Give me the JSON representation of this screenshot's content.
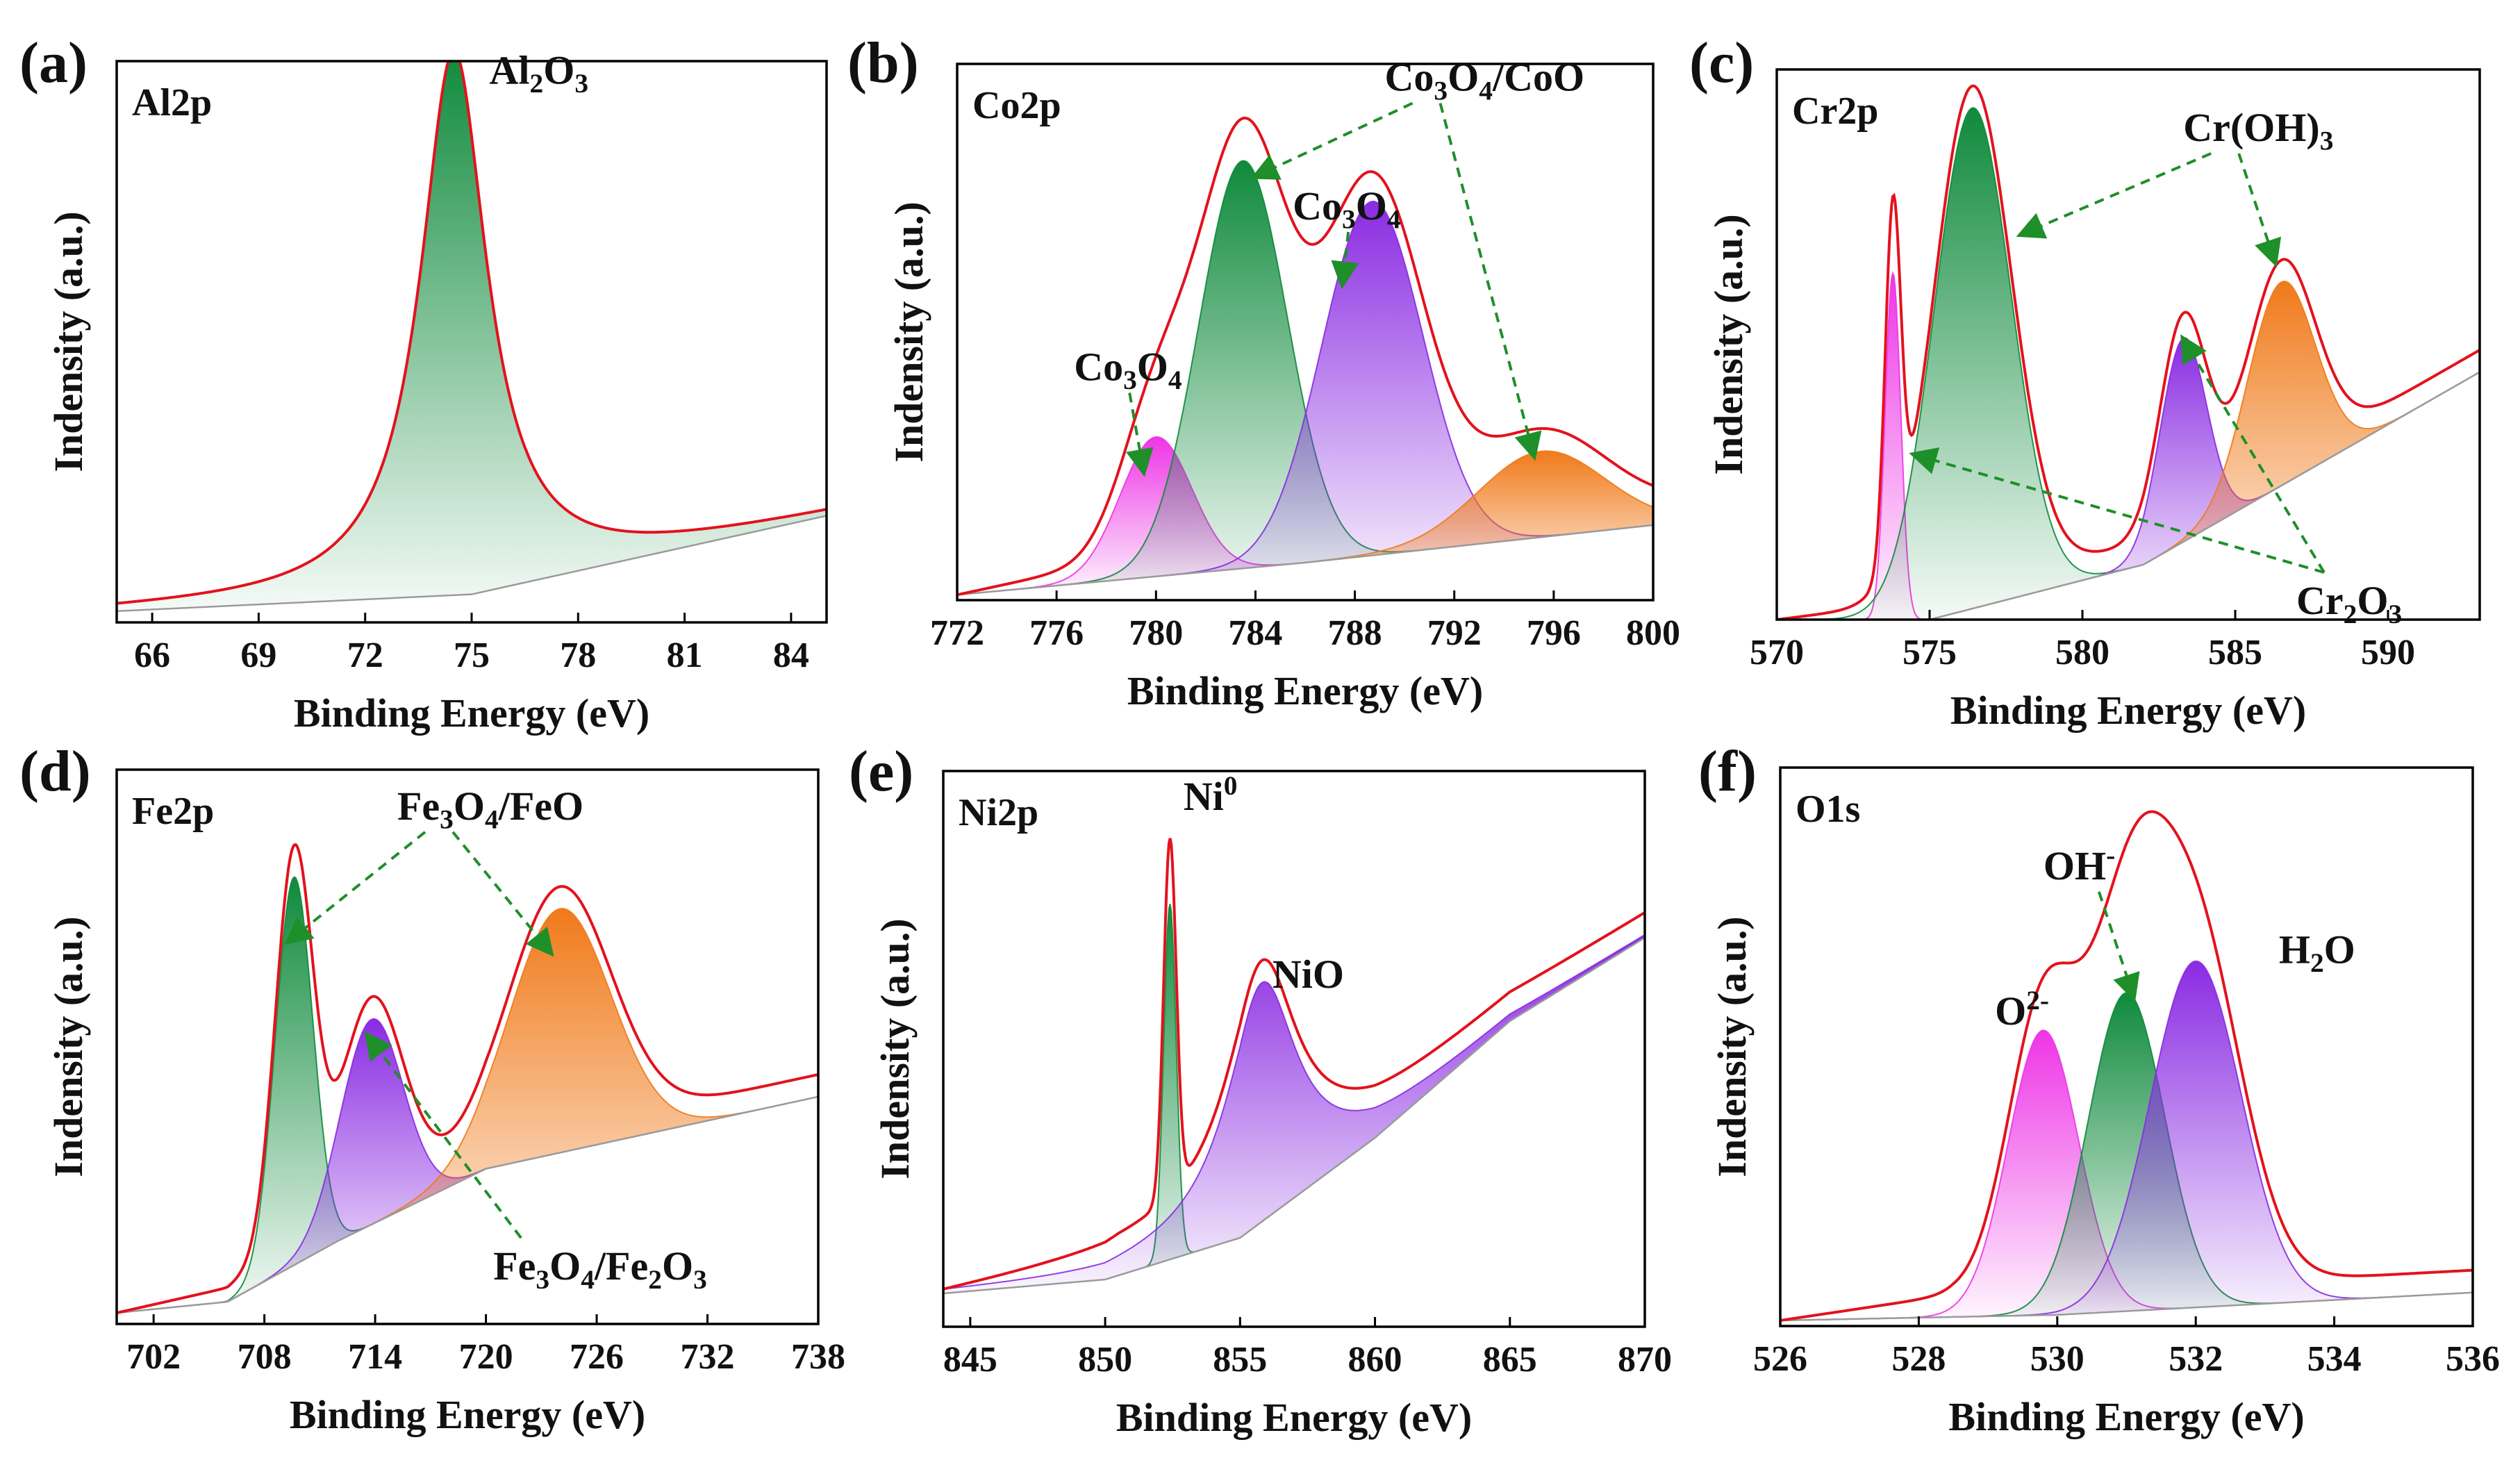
{
  "figure": {
    "x_axis_label": "Binding Energy (eV)",
    "y_axis_label": "Indensity (a.u.)"
  },
  "colors": {
    "envelope": "#e3121d",
    "green": "#0f8a3c",
    "purple": "#8a2be2",
    "orange": "#f07a1a",
    "magenta": "#ee35e6",
    "arrow": "#1f8f2a",
    "baseline": "#9b9b9b"
  },
  "chart_data": [
    {
      "id": "a",
      "panel_label": "(a)",
      "element_label": "Al2p",
      "type": "line",
      "title": "",
      "xlabel": "Binding Energy (eV)",
      "ylabel": "Indensity (a.u.)",
      "xlim": [
        65,
        85
      ],
      "ylim": [
        0,
        1
      ],
      "xticks": [
        66,
        69,
        72,
        75,
        78,
        81,
        84
      ],
      "baseline": [
        [
          65,
          0.02
        ],
        [
          75,
          0.05
        ],
        [
          85,
          0.19
        ]
      ],
      "series": [
        {
          "name": "Al2O3",
          "shape": "lorentz",
          "center": 74.5,
          "fwhm": 2.3,
          "height": 0.97,
          "color": "green"
        }
      ],
      "annotations": [
        {
          "base": "Al",
          "sub1": "2",
          "mid": "O",
          "sub2": "3",
          "tail": "",
          "pos": [
            75.5,
            0.96
          ],
          "arrows": []
        }
      ]
    },
    {
      "id": "b",
      "panel_label": "(b)",
      "element_label": "Co2p",
      "type": "line",
      "title": "",
      "xlabel": "Binding Energy (eV)",
      "ylabel": "Indensity (a.u.)",
      "xlim": [
        772,
        800
      ],
      "ylim": [
        0,
        1
      ],
      "xticks": [
        772,
        776,
        780,
        784,
        788,
        792,
        796,
        800
      ],
      "baseline": [
        [
          772,
          0.01
        ],
        [
          786,
          0.07
        ],
        [
          800,
          0.14
        ]
      ],
      "series": [
        {
          "name": "Co3O4 (780.0 eV)",
          "shape": "gauss",
          "center": 780.0,
          "fwhm": 3.4,
          "height": 0.26,
          "color": "magenta"
        },
        {
          "name": "Co3O4/CoO (783.5 eV)",
          "shape": "gauss",
          "center": 783.5,
          "fwhm": 4.2,
          "height": 0.76,
          "color": "green"
        },
        {
          "name": "Co3O4 (788.7 eV)",
          "shape": "gauss",
          "center": 788.7,
          "fwhm": 4.8,
          "height": 0.66,
          "color": "purple"
        },
        {
          "name": "Co3O4/CoO (795.5 eV)",
          "shape": "gauss",
          "center": 795.5,
          "fwhm": 6.0,
          "height": 0.16,
          "color": "orange"
        }
      ],
      "annotations": [
        {
          "base": "Co",
          "sub1": "3",
          "mid": "O",
          "sub2": "4",
          "tail": "/CoO",
          "pos": [
            789.2,
            0.95
          ],
          "arrows": [
            [
              784.0,
              0.79
            ],
            [
              795.2,
              0.27
            ]
          ]
        },
        {
          "base": "Co",
          "sub1": "3",
          "mid": "O",
          "sub2": "4",
          "tail": "",
          "pos": [
            785.5,
            0.71
          ],
          "arrows": [
            [
              787.5,
              0.59
            ]
          ]
        },
        {
          "base": "Co",
          "sub1": "3",
          "mid": "O",
          "sub2": "4",
          "tail": "",
          "pos": [
            776.7,
            0.41
          ],
          "arrows": [
            [
              779.5,
              0.24
            ]
          ]
        }
      ]
    },
    {
      "id": "c",
      "panel_label": "(c)",
      "element_label": "Cr2p",
      "type": "line",
      "title": "",
      "xlabel": "Binding Energy (eV)",
      "ylabel": "Indensity (a.u.)",
      "xlim": [
        570,
        593
      ],
      "ylim": [
        0,
        1
      ],
      "xticks": [
        570,
        575,
        580,
        585,
        590
      ],
      "baseline": [
        [
          570,
          0.0
        ],
        [
          575,
          0.0
        ],
        [
          582,
          0.1
        ],
        [
          593,
          0.45
        ]
      ],
      "series": [
        {
          "name": "Cr2O3 (573.8 eV)",
          "shape": "gauss",
          "center": 573.8,
          "fwhm": 0.6,
          "height": 0.63,
          "color": "magenta"
        },
        {
          "name": "Cr(OH)3 (576.4 eV)",
          "shape": "gauss",
          "center": 576.4,
          "fwhm": 3.0,
          "height": 0.91,
          "color": "green"
        },
        {
          "name": "Cr2O3 (583.3 eV)",
          "shape": "gauss",
          "center": 583.3,
          "fwhm": 1.8,
          "height": 0.37,
          "color": "purple"
        },
        {
          "name": "Cr(OH)3 (586.5 eV)",
          "shape": "gauss",
          "center": 586.5,
          "fwhm": 2.6,
          "height": 0.37,
          "color": "orange"
        }
      ],
      "annotations": [
        {
          "base": "Cr(OH)",
          "sub1": "3",
          "mid": "",
          "sub2": "",
          "tail": "",
          "pos": [
            583.3,
            0.87
          ],
          "arrows": [
            [
              578.0,
              0.7
            ],
            [
              586.3,
              0.65
            ]
          ]
        },
        {
          "base": "Cr",
          "sub1": "2",
          "mid": "O",
          "sub2": "3",
          "tail": "",
          "pos": [
            587.0,
            0.01
          ],
          "arrows": [
            [
              574.5,
              0.3
            ],
            [
              583.3,
              0.51
            ]
          ]
        }
      ]
    },
    {
      "id": "d",
      "panel_label": "(d)",
      "element_label": "Fe2p",
      "type": "line",
      "title": "",
      "xlabel": "Binding Energy (eV)",
      "ylabel": "Indensity (a.u.)",
      "xlim": [
        700,
        738
      ],
      "ylim": [
        0,
        1
      ],
      "xticks": [
        702,
        708,
        714,
        720,
        726,
        732,
        738
      ],
      "baseline": [
        [
          700,
          0.02
        ],
        [
          706,
          0.04
        ],
        [
          712,
          0.15
        ],
        [
          720,
          0.28
        ],
        [
          738,
          0.41
        ]
      ],
      "series": [
        {
          "name": "Fe3O4/FeO (709.6 eV)",
          "shape": "gauss",
          "center": 709.6,
          "fwhm": 2.4,
          "height": 0.7,
          "color": "green"
        },
        {
          "name": "Fe3O4/Fe2O3 (713.8 eV)",
          "shape": "gauss",
          "center": 713.8,
          "fwhm": 4.0,
          "height": 0.37,
          "color": "purple"
        },
        {
          "name": "Fe3O4/FeO (724.0 eV)",
          "shape": "gauss",
          "center": 724.0,
          "fwhm": 6.5,
          "height": 0.44,
          "color": "orange"
        }
      ],
      "annotations": [
        {
          "base": "Fe",
          "sub1": "3",
          "mid": "O",
          "sub2": "4",
          "tail": "/FeO",
          "pos": [
            715.2,
            0.91
          ],
          "arrows": [
            [
              709.3,
              0.69
            ],
            [
              723.5,
              0.67
            ]
          ]
        },
        {
          "base": "Fe",
          "sub1": "3",
          "mid": "O",
          "sub2": "4",
          "tail": "/Fe2O3",
          "pos": [
            720.4,
            0.08
          ],
          "arrows": [
            [
              713.6,
              0.52
            ]
          ]
        }
      ]
    },
    {
      "id": "e",
      "panel_label": "(e)",
      "element_label": "Ni2p",
      "type": "line",
      "title": "",
      "xlabel": "Binding Energy (eV)",
      "ylabel": "Indensity (a.u.)",
      "xlim": [
        844,
        870
      ],
      "ylim": [
        0,
        1
      ],
      "xticks": [
        845,
        850,
        855,
        860,
        865,
        870
      ],
      "baseline": [
        [
          844,
          0.06
        ],
        [
          850,
          0.085
        ],
        [
          855,
          0.16
        ],
        [
          860,
          0.34
        ],
        [
          865,
          0.55
        ],
        [
          870,
          0.7
        ]
      ],
      "series": [
        {
          "name": "Ni0 (852.4 eV)",
          "shape": "gauss",
          "center": 852.4,
          "fwhm": 0.55,
          "height": 0.64,
          "color": "green"
        },
        {
          "name": "NiO (855.8 eV)",
          "shape": "lorentz",
          "center": 855.8,
          "fwhm": 3.2,
          "height": 0.43,
          "color": "purple"
        }
      ],
      "annotations": [
        {
          "base": "Ni",
          "sub1": "",
          "mid": "",
          "sub2": "",
          "tail": "",
          "sup": "0",
          "pos": [
            852.9,
            0.93
          ],
          "arrows": []
        },
        {
          "base": "NiO",
          "sub1": "",
          "mid": "",
          "sub2": "",
          "tail": "",
          "pos": [
            856.2,
            0.61
          ],
          "arrows": []
        }
      ]
    },
    {
      "id": "f",
      "panel_label": "(f)",
      "element_label": "O1s",
      "type": "line",
      "title": "",
      "xlabel": "Binding Energy (eV)",
      "ylabel": "Indensity (a.u.)",
      "xlim": [
        526,
        536
      ],
      "ylim": [
        0,
        1
      ],
      "xticks": [
        526,
        528,
        530,
        532,
        534,
        536
      ],
      "baseline": [
        [
          526,
          0.01
        ],
        [
          530,
          0.02
        ],
        [
          536,
          0.06
        ]
      ],
      "series": [
        {
          "name": "O2- (529.8 eV)",
          "shape": "gauss",
          "center": 529.8,
          "fwhm": 1.2,
          "height": 0.51,
          "color": "magenta"
        },
        {
          "name": "OH- (531.0 eV)",
          "shape": "gauss",
          "center": 531.0,
          "fwhm": 1.3,
          "height": 0.57,
          "color": "green"
        },
        {
          "name": "H2O (532.0 eV)",
          "shape": "gauss",
          "center": 532.0,
          "fwhm": 1.55,
          "height": 0.62,
          "color": "purple"
        }
      ],
      "annotations": [
        {
          "base": "OH",
          "sub1": "",
          "mid": "",
          "sub2": "",
          "tail": "",
          "sup": "-",
          "pos": [
            529.8,
            0.8
          ],
          "arrows": [
            [
              531.1,
              0.59
            ]
          ]
        },
        {
          "base": "H",
          "sub1": "2",
          "mid": "O",
          "sub2": "",
          "tail": "",
          "pos": [
            533.2,
            0.65
          ],
          "arrows": []
        },
        {
          "base": "O",
          "sub1": "",
          "mid": "",
          "sub2": "",
          "tail": "",
          "sup": "2-",
          "pos": [
            529.1,
            0.54
          ],
          "arrows": []
        }
      ]
    }
  ]
}
